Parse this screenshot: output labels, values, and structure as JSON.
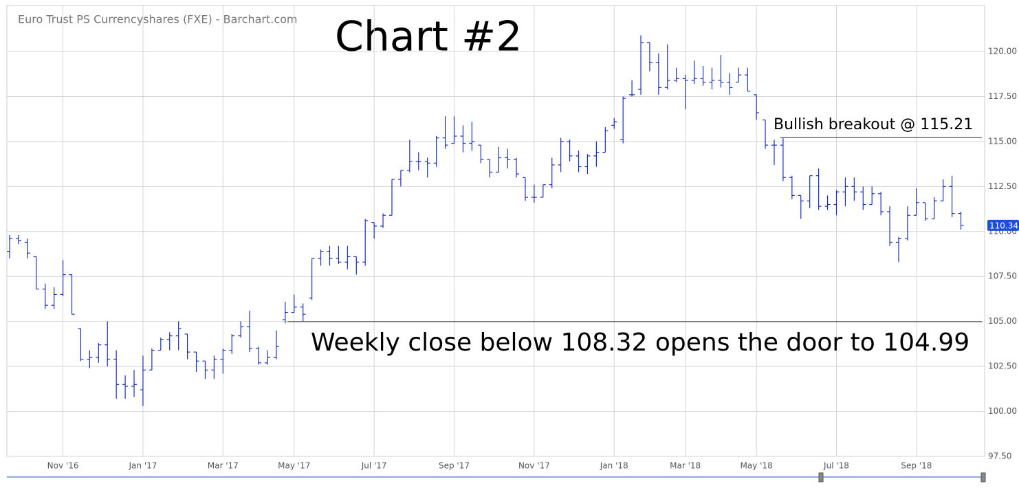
{
  "chart_data": {
    "type": "ohlc",
    "title": "Chart #2",
    "subtitle": "Euro Trust PS Currencyshares (FXE) - Barchart.com",
    "color": "#1a2fb8",
    "grid": true,
    "categories": [
      null,
      null,
      null,
      null,
      null,
      null,
      "Nov '16",
      null,
      null,
      null,
      null,
      null,
      null,
      null,
      null,
      "Jan '17",
      null,
      null,
      null,
      null,
      null,
      null,
      null,
      null,
      "Mar '17",
      null,
      null,
      null,
      null,
      null,
      null,
      null,
      "May '17",
      null,
      null,
      null,
      null,
      null,
      null,
      null,
      null,
      "Jul '17",
      null,
      null,
      null,
      null,
      null,
      null,
      null,
      null,
      "Sep '17",
      null,
      null,
      null,
      null,
      null,
      null,
      null,
      null,
      "Nov '17",
      null,
      null,
      null,
      null,
      null,
      null,
      null,
      null,
      "Jan '18",
      null,
      null,
      null,
      null,
      null,
      null,
      null,
      "Mar '18",
      null,
      null,
      null,
      null,
      null,
      null,
      null,
      "May '18",
      null,
      null,
      null,
      null,
      null,
      null,
      null,
      null,
      "Jul '18",
      null,
      null,
      null,
      null,
      null,
      null,
      null,
      null,
      "Sep '18",
      null,
      null,
      null,
      null,
      null
    ],
    "open": [
      108.9,
      109.6,
      109.4,
      108.6,
      106.8,
      105.9,
      106.5,
      107.6,
      104.6,
      102.9,
      103.0,
      103.7,
      102.9,
      101.5,
      101.4,
      101.2,
      102.3,
      103.4,
      104.0,
      104.2,
      104.3,
      103.3,
      102.8,
      102.3,
      102.9,
      103.4,
      104.2,
      104.7,
      103.5,
      102.7,
      103.0,
      105.1,
      105.5,
      105.8,
      106.3,
      108.5,
      108.9,
      108.5,
      108.3,
      108.6,
      108.3,
      110.5,
      110.3,
      110.9,
      112.9,
      113.4,
      113.9,
      113.9,
      113.8,
      115.2,
      114.9,
      115.3,
      114.9,
      114.8,
      114.0,
      113.3,
      114.1,
      114.0,
      113.0,
      111.9,
      111.9,
      112.6,
      113.7,
      115.0,
      114.2,
      113.6,
      114.2,
      114.4,
      115.9,
      115.1,
      117.6,
      117.9,
      120.5,
      119.4,
      118.0,
      118.4,
      118.5,
      118.4,
      118.5,
      118.3,
      118.4,
      118.3,
      118.3,
      118.7,
      117.6,
      116.2,
      114.8,
      114.8,
      113.0,
      112.0,
      111.7,
      113.1,
      111.4,
      111.5,
      112.2,
      112.5,
      112.2,
      111.5,
      112.1,
      111.1,
      109.4,
      109.6,
      110.9,
      111.6,
      110.7,
      111.7,
      112.5,
      111.0
    ],
    "high": [
      109.8,
      109.8,
      109.6,
      108.6,
      107.1,
      106.9,
      108.4,
      107.6,
      104.6,
      103.4,
      103.8,
      105.0,
      103.4,
      102.0,
      102.3,
      103.1,
      103.5,
      104.1,
      104.4,
      105.0,
      104.3,
      103.3,
      102.8,
      103.1,
      103.5,
      104.3,
      105.0,
      105.6,
      103.6,
      103.4,
      104.5,
      106.1,
      106.5,
      106.0,
      108.5,
      109.0,
      109.2,
      109.2,
      109.2,
      108.6,
      110.7,
      110.5,
      111.0,
      112.9,
      113.4,
      115.1,
      114.4,
      114.1,
      115.3,
      116.4,
      116.4,
      115.9,
      116.1,
      114.8,
      114.0,
      114.7,
      114.6,
      114.1,
      113.0,
      112.6,
      112.6,
      114.1,
      115.2,
      115.1,
      114.5,
      114.3,
      115.0,
      115.8,
      116.3,
      117.5,
      118.4,
      120.9,
      120.5,
      119.9,
      120.4,
      119.1,
      118.7,
      119.5,
      119.2,
      119.1,
      119.8,
      118.8,
      119.1,
      119.1,
      117.6,
      116.2,
      115.1,
      115.2,
      113.1,
      112.0,
      113.1,
      113.5,
      112.0,
      112.3,
      113.0,
      113.0,
      112.5,
      112.5,
      112.2,
      111.4,
      109.7,
      111.4,
      112.4,
      111.6,
      111.9,
      112.9,
      113.1,
      111.1
    ],
    "low": [
      108.5,
      109.3,
      108.5,
      106.8,
      105.7,
      105.7,
      106.4,
      105.4,
      102.8,
      102.4,
      102.7,
      102.5,
      100.7,
      100.7,
      100.8,
      100.3,
      102.3,
      103.4,
      103.4,
      103.4,
      102.9,
      102.2,
      101.8,
      101.8,
      102.1,
      103.2,
      104.1,
      103.3,
      102.6,
      102.6,
      102.9,
      104.9,
      105.5,
      105.0,
      106.2,
      108.1,
      108.1,
      108.2,
      107.9,
      107.6,
      108.1,
      109.6,
      110.2,
      110.9,
      112.5,
      113.3,
      113.4,
      113.0,
      113.6,
      114.6,
      114.9,
      114.4,
      114.5,
      113.8,
      113.0,
      113.3,
      113.5,
      113.0,
      111.7,
      111.6,
      111.9,
      112.4,
      113.3,
      113.9,
      113.3,
      113.2,
      113.6,
      114.4,
      115.7,
      114.9,
      117.5,
      117.6,
      118.9,
      117.6,
      117.9,
      118.3,
      116.8,
      118.2,
      118.1,
      117.9,
      118.0,
      117.6,
      118.3,
      117.8,
      116.2,
      114.6,
      113.7,
      112.8,
      111.8,
      110.7,
      111.3,
      111.2,
      111.2,
      110.9,
      111.4,
      111.7,
      111.2,
      111.5,
      110.9,
      109.2,
      108.3,
      109.5,
      110.9,
      110.6,
      110.7,
      111.7,
      110.8,
      110.1
    ],
    "close": [
      109.6,
      109.5,
      108.8,
      106.8,
      105.9,
      106.5,
      107.6,
      105.4,
      102.9,
      103.0,
      103.7,
      102.9,
      101.5,
      101.4,
      101.5,
      102.3,
      103.4,
      104.0,
      104.2,
      104.6,
      103.3,
      102.8,
      102.3,
      102.9,
      103.4,
      104.2,
      104.7,
      103.5,
      102.7,
      103.0,
      103.6,
      105.5,
      105.8,
      105.4,
      108.5,
      108.9,
      108.5,
      108.3,
      108.6,
      108.3,
      110.6,
      110.3,
      110.9,
      112.9,
      113.4,
      113.9,
      113.9,
      113.8,
      115.2,
      114.8,
      115.3,
      114.9,
      115.0,
      114.0,
      113.3,
      114.1,
      114.0,
      113.2,
      111.9,
      111.9,
      112.6,
      113.7,
      115.0,
      114.2,
      113.6,
      114.2,
      114.4,
      115.6,
      116.1,
      117.4,
      117.6,
      120.5,
      119.4,
      118.0,
      118.4,
      118.5,
      118.4,
      118.5,
      118.3,
      118.4,
      118.3,
      118.0,
      118.7,
      117.8,
      116.6,
      114.8,
      114.8,
      113.0,
      112.0,
      111.7,
      113.1,
      111.4,
      111.5,
      112.2,
      112.5,
      112.2,
      111.5,
      112.1,
      111.1,
      109.4,
      109.6,
      110.9,
      111.6,
      110.7,
      111.7,
      112.5,
      111.0,
      110.34
    ],
    "ylim": [
      97.5,
      122.56
    ],
    "yticks": [
      {
        "value": 97.5,
        "label": "97.50"
      },
      {
        "value": 100,
        "label": "100.00"
      },
      {
        "value": 102.5,
        "label": "102.50"
      },
      {
        "value": 105,
        "label": "105.00"
      },
      {
        "value": 107.5,
        "label": "107.50"
      },
      {
        "value": 110,
        "label": "110.00"
      },
      {
        "value": 112.5,
        "label": "112.50"
      },
      {
        "value": 115,
        "label": "115.00"
      },
      {
        "value": 117.5,
        "label": "117.50"
      },
      {
        "value": 120,
        "label": "120.00"
      }
    ],
    "annotations": [
      {
        "text": "Bullish breakout @ 115.21",
        "value": 115.21
      },
      {
        "text": "Weekly close below 108.32 opens the door to 104.99",
        "value": 104.99
      }
    ]
  }
}
